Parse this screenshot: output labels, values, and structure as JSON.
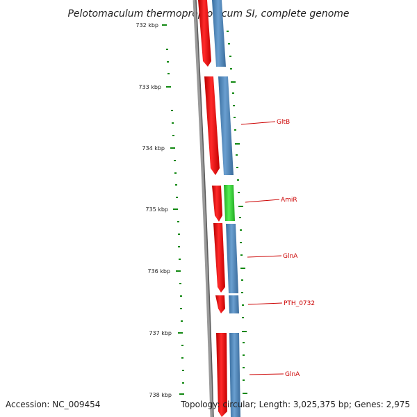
{
  "title": "Pelotomaculum thermopropionicum SI, complete genome",
  "accession": "Accession: NC_009454",
  "topology": "Topology: circular; Length: 3,025,375 bp; Genes: 2,975",
  "ticks": [
    "732 kbp",
    "733 kbp",
    "734 kbp",
    "735 kbp",
    "736 kbp",
    "737 kbp",
    "738 kbp"
  ],
  "genes": [
    {
      "label": "GltB"
    },
    {
      "label": "AmiR"
    },
    {
      "label": "GlnA"
    },
    {
      "label": "PTH_0732"
    },
    {
      "label": "GlnA"
    }
  ],
  "colors": {
    "forward_cds": "#ee1111",
    "reverse_cds": "#4a82b8",
    "rna_gene": "#33cc33",
    "backbone": "#777777",
    "tick": "#118811",
    "label_line": "#cc0000"
  }
}
